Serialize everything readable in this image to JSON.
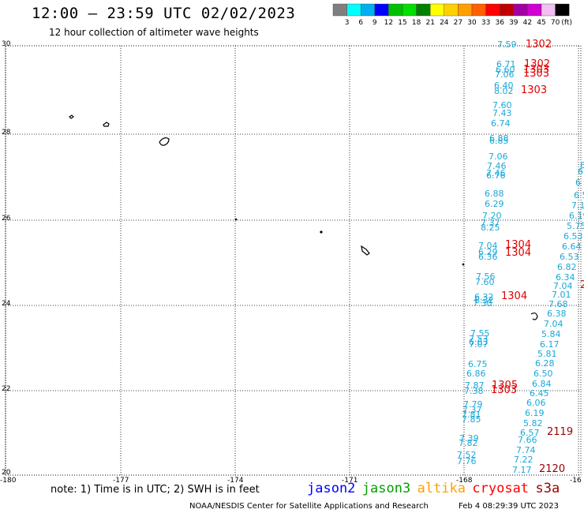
{
  "header": {
    "title": "12:00 – 23:59 UTC 02/02/2023",
    "subtitle": "12 hour collection of altimeter wave heights"
  },
  "color_scale": {
    "unit": "(ft)",
    "ticks": [
      "3",
      "6",
      "9",
      "12",
      "15",
      "18",
      "21",
      "24",
      "27",
      "30",
      "33",
      "36",
      "39",
      "42",
      "45",
      "70"
    ],
    "colors": [
      "#7f7f7f",
      "#00ffff",
      "#00b0f0",
      "#0000ff",
      "#00c000",
      "#00e000",
      "#008000",
      "#ffff00",
      "#ffd000",
      "#ffa000",
      "#ff6000",
      "#ff0000",
      "#c00000",
      "#a000a0",
      "#d000d0",
      "#f0c0f0",
      "#000000"
    ]
  },
  "axes": {
    "lat_labels": [
      "30",
      "28",
      "26",
      "24",
      "22",
      "20"
    ],
    "lon_labels": [
      "-180",
      "-177",
      "-174",
      "-171",
      "-168",
      "-16"
    ]
  },
  "observations": {
    "cyan": [
      [
        "7.59",
        630,
        60
      ],
      [
        "6.71",
        629,
        85
      ],
      [
        "6.60",
        628,
        92
      ],
      [
        "7.06",
        627,
        98
      ],
      [
        "6.40",
        626,
        112
      ],
      [
        "8.02",
        626,
        119
      ],
      [
        "7.60",
        624,
        137
      ],
      [
        "7.43",
        624,
        147
      ],
      [
        "6.74",
        622,
        160
      ],
      [
        "6.88",
        620,
        179
      ],
      [
        "6.85",
        620,
        182
      ],
      [
        "7.06",
        619,
        202
      ],
      [
        "7.46",
        617,
        214
      ],
      [
        "7.46",
        616,
        223
      ],
      [
        "6.76",
        616,
        226
      ],
      [
        "6.88",
        614,
        249
      ],
      [
        "6.29",
        614,
        262
      ],
      [
        "7.20",
        611,
        277
      ],
      [
        "7.37",
        609,
        286
      ],
      [
        "8.25",
        609,
        292
      ],
      [
        "7.04",
        606,
        315
      ],
      [
        "6.29",
        606,
        323
      ],
      [
        "6.36",
        606,
        329
      ],
      [
        "7.56",
        603,
        354
      ],
      [
        "7.60",
        602,
        361
      ],
      [
        "6.32",
        601,
        380
      ],
      [
        "6.32",
        601,
        384
      ],
      [
        "7.30",
        599,
        388
      ],
      [
        "7.55",
        596,
        426
      ],
      [
        "7.53",
        594,
        433
      ],
      [
        "6.63",
        594,
        437
      ],
      [
        "7.07",
        594,
        440
      ],
      [
        "6.75",
        593,
        465
      ],
      [
        "6.86",
        591,
        477
      ],
      [
        "7.87",
        589,
        492
      ],
      [
        "7.38",
        588,
        499
      ],
      [
        "7.79",
        587,
        516
      ],
      [
        "7.37",
        586,
        523
      ],
      [
        "7.81",
        585,
        529
      ],
      [
        "7.85",
        585,
        535
      ],
      [
        "7.39",
        582,
        559
      ],
      [
        "7.82",
        581,
        565
      ],
      [
        "7.52",
        579,
        580
      ],
      [
        "7.76",
        579,
        588
      ],
      [
        "6.38",
        693,
        401
      ],
      [
        "7.04",
        689,
        414
      ],
      [
        "5.84",
        686,
        427
      ],
      [
        "6.17",
        684,
        440
      ],
      [
        "5.81",
        681,
        452
      ],
      [
        "6.28",
        678,
        464
      ],
      [
        "6.50",
        676,
        477
      ],
      [
        "6.84",
        674,
        490
      ],
      [
        "6.45",
        671,
        502
      ],
      [
        "6.06",
        667,
        514
      ],
      [
        "6.19",
        665,
        527
      ],
      [
        "5.82",
        663,
        540
      ],
      [
        "6.57",
        659,
        552
      ],
      [
        "7.66",
        656,
        561
      ],
      [
        "7.74",
        654,
        574
      ],
      [
        "7.22",
        651,
        586
      ],
      [
        "7.17",
        649,
        599
      ],
      [
        "7.68",
        695,
        389
      ],
      [
        "7.01",
        699,
        377
      ],
      [
        "7.04",
        701,
        366
      ],
      [
        "6.34",
        704,
        355
      ],
      [
        "6.82",
        706,
        342
      ],
      [
        "6.53",
        709,
        329
      ],
      [
        "6.64",
        712,
        316
      ],
      [
        "6.53",
        714,
        303
      ],
      [
        "5.75",
        718,
        290
      ],
      [
        "6.19",
        721,
        277
      ],
      [
        "7.1",
        724,
        264
      ],
      [
        "6.5",
        727,
        251
      ],
      [
        "6",
        729,
        235
      ],
      [
        "6",
        732,
        221
      ],
      [
        "6",
        735,
        213
      ]
    ],
    "red": [
      [
        "1302",
        666,
        60
      ],
      [
        "1302",
        664,
        85
      ],
      [
        "1303",
        663,
        92
      ],
      [
        "1303",
        663,
        97
      ],
      [
        "1303",
        660,
        118
      ],
      [
        "1304",
        640,
        314
      ],
      [
        "1304",
        640,
        324
      ],
      [
        "1304",
        635,
        379
      ],
      [
        "1305",
        623,
        492
      ],
      [
        "1303",
        622,
        498
      ],
      [
        "2",
        735,
        365
      ]
    ],
    "darkred": [
      [
        "2119",
        693,
        551
      ],
      [
        "2120",
        683,
        598
      ]
    ]
  },
  "footer": {
    "note": "note:  1) Time is in UTC;  2) SWH is in feet",
    "satellites": [
      {
        "name": "jason2",
        "color": "#0000ff"
      },
      {
        "name": "jason3",
        "color": "#00a000"
      },
      {
        "name": "altika",
        "color": "#ffa000"
      },
      {
        "name": "cryosat",
        "color": "#ff0000"
      },
      {
        "name": "s3a",
        "color": "#a00000"
      }
    ],
    "credit": "NOAA/NESDIS Center for Satellite Applications and Research",
    "timestamp": "Feb  4 08:29:39 UTC 2023"
  }
}
